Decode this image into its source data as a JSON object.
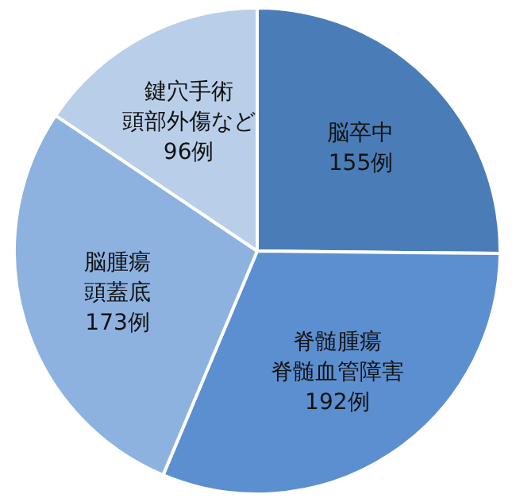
{
  "chart_data": {
    "type": "pie",
    "categories": [
      "脳卒中",
      "脊髄腫瘍脊髄血管障害",
      "脳腫瘍頭蓋底",
      "鍵穴手術頭部外傷など"
    ],
    "values": [
      155,
      192,
      173,
      96
    ],
    "value_labels": [
      "155例",
      "192例",
      "173例",
      "96例"
    ],
    "colors": [
      "#4a7db8",
      "#5b8fd0",
      "#8db2e0",
      "#b9cee8"
    ]
  }
}
